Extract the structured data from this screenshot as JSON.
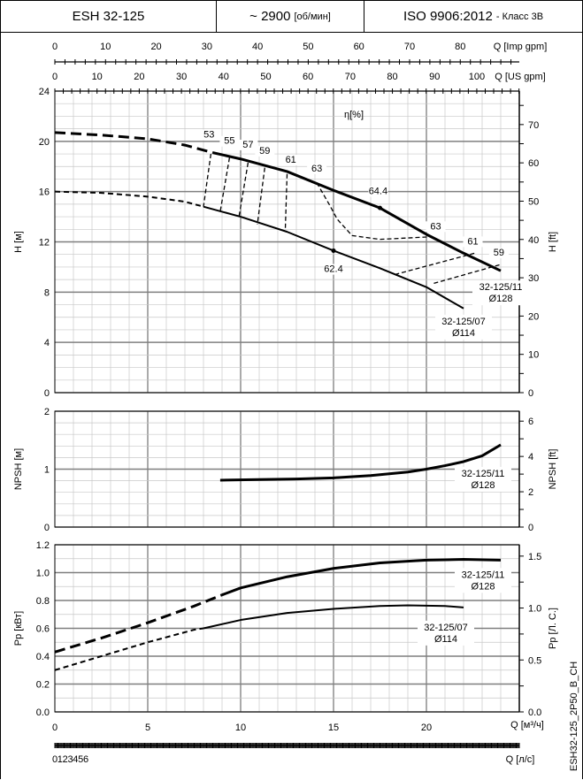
{
  "header": {
    "model": "ESH 32-125",
    "speed": "~ 2900",
    "speed_unit": "[об/мин]",
    "standard": "ISO 9906:2012",
    "standard_class": "- Класс 3B"
  },
  "doc_code": "ESH32-125_2P50_B_CH",
  "colors": {
    "curve": "#000000",
    "grid_major": "#7f7f7f",
    "grid_minor": "#c8c8c8",
    "axis_label_left": "#8b3a1a"
  },
  "secondary_axes": {
    "imp_gpm": {
      "label": "Q [Imp gpm]",
      "ticks": [
        0,
        10,
        20,
        30,
        40,
        50,
        60,
        70,
        80
      ]
    },
    "us_gpm": {
      "label": "Q [US gpm]",
      "ticks": [
        0,
        10,
        20,
        30,
        40,
        50,
        60,
        70,
        80,
        90,
        100
      ]
    },
    "lps": {
      "label": "Q [л/с]",
      "ticks": [
        0,
        1,
        2,
        3,
        4,
        5,
        6
      ]
    }
  },
  "chart_data": [
    {
      "type": "line",
      "id": "head",
      "xlabel": "Q [м³/ч]",
      "xlim": [
        0,
        25
      ],
      "ylabel": "H [м]",
      "ylim": [
        0,
        24
      ],
      "yticks": [
        0,
        4,
        8,
        12,
        16,
        20,
        24
      ],
      "ylabel_right": "H [ft]",
      "yticks_right": [
        0,
        10,
        20,
        30,
        40,
        50,
        60,
        70
      ],
      "grid": true,
      "annotation": "η[%]",
      "series": [
        {
          "name": "32-125/11",
          "sub": "Ø128",
          "dashed_until": 8.5,
          "x": [
            0,
            2.5,
            5,
            7,
            8.5,
            10,
            12.5,
            15,
            17.5,
            20,
            22,
            24
          ],
          "y": [
            20.7,
            20.5,
            20.2,
            19.7,
            19.1,
            18.6,
            17.6,
            16.1,
            14.7,
            12.6,
            11.1,
            9.7
          ]
        },
        {
          "name": "32-125/07",
          "sub": "Ø114",
          "dashed_until": 8.0,
          "x": [
            0,
            2.5,
            5,
            7,
            8,
            10,
            12.5,
            15,
            17.5,
            20,
            22
          ],
          "y": [
            16.0,
            15.9,
            15.6,
            15.2,
            14.8,
            14.0,
            12.8,
            11.3,
            9.9,
            8.4,
            6.7
          ]
        }
      ],
      "efficiency_lines": [
        {
          "label": "53",
          "x": [
            8.4,
            8.0
          ],
          "y": [
            19.0,
            14.8
          ]
        },
        {
          "label": "55",
          "x": [
            9.4,
            8.9
          ],
          "y": [
            18.7,
            14.4
          ]
        },
        {
          "label": "57",
          "x": [
            10.4,
            9.9
          ],
          "y": [
            18.3,
            13.9
          ]
        },
        {
          "label": "59",
          "x": [
            11.3,
            10.9
          ],
          "y": [
            17.9,
            13.4
          ]
        },
        {
          "label": "61",
          "x": [
            12.5,
            12.4
          ],
          "y": [
            17.4,
            12.8
          ]
        },
        {
          "label": "63",
          "x": [
            14.1,
            14.8,
            15.2,
            16.0,
            17.5,
            20.2
          ],
          "y": [
            16.7,
            14.9,
            13.8,
            12.5,
            12.2,
            12.4
          ]
        },
        {
          "label": "61",
          "x": [
            18.3,
            22.6
          ],
          "y": [
            9.4,
            11.1
          ]
        },
        {
          "label": "59",
          "x": [
            20.4,
            24.0
          ],
          "y": [
            8.7,
            10.2
          ]
        }
      ],
      "efficiency_labels": [
        {
          "text": "53",
          "x": 8.3,
          "y": 20.3
        },
        {
          "text": "55",
          "x": 9.4,
          "y": 19.8
        },
        {
          "text": "57",
          "x": 10.4,
          "y": 19.5
        },
        {
          "text": "59",
          "x": 11.3,
          "y": 19.0
        },
        {
          "text": "61",
          "x": 12.7,
          "y": 18.3
        },
        {
          "text": "63",
          "x": 14.1,
          "y": 17.6
        },
        {
          "text": "64.4",
          "x": 17.4,
          "y": 15.8
        },
        {
          "text": "63",
          "x": 20.5,
          "y": 13.0
        },
        {
          "text": "61",
          "x": 22.5,
          "y": 11.8
        },
        {
          "text": "59",
          "x": 23.9,
          "y": 10.9
        },
        {
          "text": "62.4",
          "x": 15.0,
          "y": 9.6
        }
      ],
      "bep_points": [
        {
          "x": 17.5,
          "y": 14.7
        },
        {
          "x": 15.0,
          "y": 11.3
        }
      ]
    },
    {
      "type": "line",
      "id": "npsh",
      "xlim": [
        0,
        25
      ],
      "ylabel": "NPSH [м]",
      "ylim": [
        0,
        2
      ],
      "yticks": [
        0,
        1,
        2
      ],
      "ylabel_right": "NPSH [ft]",
      "yticks_right": [
        0,
        2,
        4,
        6
      ],
      "grid": true,
      "series": [
        {
          "name": "32-125/11",
          "sub": "Ø128",
          "x": [
            8.9,
            11,
            13,
            15,
            17,
            19,
            20,
            21,
            22,
            23,
            24
          ],
          "y": [
            0.81,
            0.82,
            0.83,
            0.85,
            0.89,
            0.95,
            1.0,
            1.06,
            1.13,
            1.23,
            1.42
          ]
        }
      ]
    },
    {
      "type": "line",
      "id": "power",
      "xlabel": "Q [м³/ч]",
      "xlim": [
        0,
        25
      ],
      "xticks": [
        0,
        5,
        10,
        15,
        20
      ],
      "ylabel": "Pp [кВт]",
      "ylim": [
        0,
        1.2
      ],
      "yticks": [
        0.0,
        0.2,
        0.4,
        0.6,
        0.8,
        1.0,
        1.2
      ],
      "ylabel_right": "Pp [Л. С.]",
      "yticks_right": [
        "0.0",
        "0.5",
        "1.0",
        "1.5"
      ],
      "grid": true,
      "series": [
        {
          "name": "32-125/11",
          "sub": "Ø128",
          "dashed_until": 9.0,
          "x": [
            0,
            2.5,
            5,
            7.5,
            9,
            10,
            12.5,
            15,
            17.5,
            20,
            22,
            24
          ],
          "y": [
            0.43,
            0.53,
            0.64,
            0.76,
            0.84,
            0.89,
            0.97,
            1.03,
            1.07,
            1.09,
            1.095,
            1.09
          ]
        },
        {
          "name": "32-125/07",
          "sub": "Ø114",
          "dashed_until": 8.0,
          "x": [
            0,
            2.5,
            5,
            7.5,
            8,
            10,
            12.5,
            15,
            17.5,
            19,
            21,
            22
          ],
          "y": [
            0.3,
            0.4,
            0.5,
            0.59,
            0.6,
            0.66,
            0.71,
            0.74,
            0.76,
            0.765,
            0.76,
            0.75
          ]
        }
      ]
    }
  ]
}
